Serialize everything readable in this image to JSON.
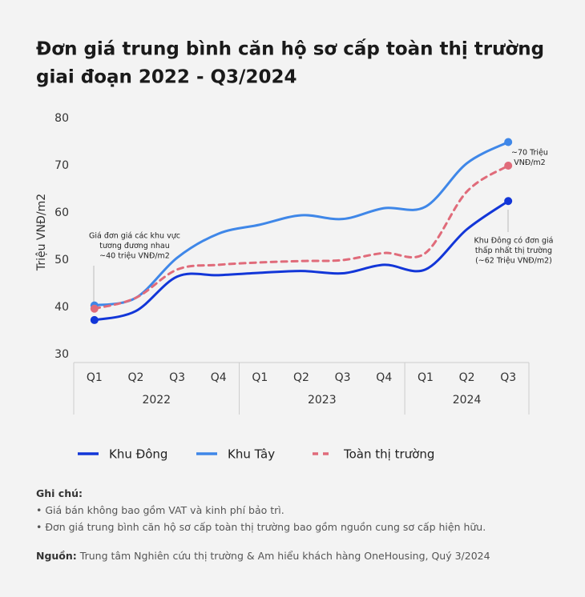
{
  "chart_data": {
    "type": "line",
    "title": [
      "Đơn giá trung bình căn hộ sơ cấp toàn thị trường",
      "giai đoạn 2022 - Q3/2024"
    ],
    "y_label": "Triệu VNĐ/m2",
    "categories": [
      "Q1",
      "Q2",
      "Q3",
      "Q4",
      "Q1",
      "Q2",
      "Q3",
      "Q4",
      "Q1",
      "Q2",
      "Q3"
    ],
    "groups": [
      "2022",
      "2023",
      "2024"
    ],
    "ylim": [
      30,
      80
    ],
    "yticks": [
      30,
      40,
      50,
      60,
      70,
      80
    ],
    "series": [
      {
        "name": "Khu Đông",
        "color": "#1236d8",
        "dashed": false,
        "values": [
          37.3,
          39.2,
          46.5,
          46.8,
          47.3,
          47.7,
          47.2,
          49.0,
          48.0,
          56.5,
          62.5
        ]
      },
      {
        "name": "Khu Tây",
        "color": "#3f87e8",
        "dashed": false,
        "values": [
          40.4,
          42.0,
          50.5,
          55.6,
          57.5,
          59.5,
          58.7,
          61.0,
          61.3,
          70.5,
          75.0
        ]
      },
      {
        "name": "Toàn thị trường",
        "color": "#e06b7a",
        "dashed": true,
        "values": [
          39.7,
          42.0,
          48.0,
          49.0,
          49.5,
          49.8,
          50.0,
          51.5,
          51.5,
          64.5,
          70.0
        ]
      }
    ],
    "annotations": [
      {
        "lines": [
          "Giá đơn giá các khu vực",
          "tương đương nhau",
          "~40 triệu VNĐ/m2"
        ],
        "color": "#222222"
      },
      {
        "lines": [
          "~70 Triệu",
          "VNĐ/m2"
        ],
        "color": "#e06b7a"
      },
      {
        "lines": [
          "Khu Đông có đơn giá",
          "thấp nhất thị trường",
          "(~62 Triệu VNĐ/m2)"
        ],
        "color": "#222222"
      }
    ],
    "notes": {
      "title": "Ghi chú:",
      "items": [
        "Giá bán không bao gồm VAT và kinh phí bảo trì.",
        "Đơn giá trung bình căn hộ sơ cấp toàn thị trường bao gồm nguồn cung sơ cấp hiện hữu."
      ]
    },
    "source": {
      "label": "Nguồn:",
      "text": "Trung tâm Nghiên cứu thị trường & Am hiểu khách hàng OneHousing, Quý 3/2024"
    }
  }
}
